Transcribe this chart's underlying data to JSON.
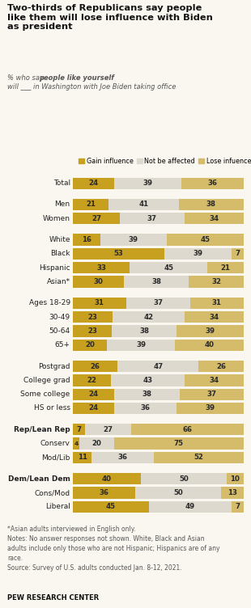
{
  "title": "Two-thirds of Republicans say people\nlike them will lose influence with Biden\nas president",
  "subtitle_italic": "% who say ",
  "subtitle_bold_italic": "people like yourself",
  "subtitle_rest": " will ___ in Washington\nwith Joe Biden taking office",
  "legend_labels": [
    "Gain influence",
    "Not be affected",
    "Lose infuence"
  ],
  "colors": [
    "#c8a020",
    "#ddd9ce",
    "#d4bc6a"
  ],
  "categories": [
    "Total",
    "Men",
    "Women",
    "White",
    "Black",
    "Hispanic",
    "Asian*",
    "Ages 18-29",
    "30-49",
    "50-64",
    "65+",
    "Postgrad",
    "College grad",
    "Some college",
    "HS or less",
    "Rep/Lean Rep",
    "Conserv",
    "Mod/Lib",
    "Dem/Lean Dem",
    "Cons/Mod",
    "Liberal"
  ],
  "bold_categories": [
    "Rep/Lean Rep",
    "Dem/Lean Dem"
  ],
  "gain": [
    24,
    21,
    27,
    16,
    53,
    33,
    30,
    31,
    23,
    23,
    20,
    26,
    22,
    24,
    24,
    7,
    4,
    11,
    40,
    36,
    45
  ],
  "not_affected": [
    39,
    41,
    37,
    39,
    39,
    45,
    38,
    37,
    42,
    38,
    39,
    47,
    43,
    38,
    36,
    27,
    20,
    36,
    50,
    50,
    49
  ],
  "lose": [
    36,
    38,
    34,
    45,
    7,
    21,
    32,
    31,
    34,
    39,
    40,
    26,
    34,
    37,
    39,
    66,
    75,
    52,
    10,
    13,
    7
  ],
  "separators_after": [
    0,
    2,
    6,
    10,
    14,
    17
  ],
  "note": "*Asian adults interviewed in English only.\nNotes: No answer responses not shown. White, Black and Asian\nadults include only those who are not Hispanic; Hispanics are of any\nrace.\nSource: Survey of U.S. adults conducted Jan. 8-12, 2021.",
  "source_bold": "PEW RESEARCH CENTER",
  "background_color": "#f9f7f0"
}
